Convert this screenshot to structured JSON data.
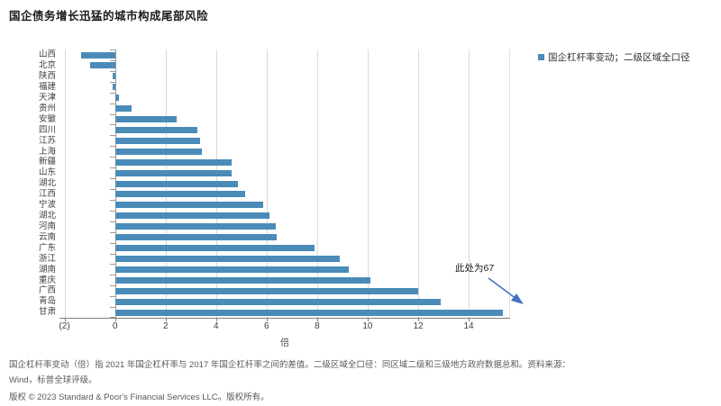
{
  "title": "国企债务增长迅猛的城市构成尾部风险",
  "legend": {
    "label": "国企杠杆率变动；二级区域全口径",
    "marker_color": "#4A8BB8"
  },
  "chart_data": {
    "type": "bar",
    "orientation": "horizontal",
    "title": "国企债务增长迅猛的城市构成尾部风险",
    "categories": [
      "山西",
      "北京",
      "陕西",
      "福建",
      "天津",
      "贵州",
      "安徽",
      "四川",
      "江苏",
      "上海",
      "新疆",
      "山东",
      "湖北",
      "江西",
      "宁波",
      "湖北",
      "河南",
      "云南",
      "广东",
      "浙江",
      "湖南",
      "重庆",
      "广西",
      "青岛",
      "甘肃"
    ],
    "values": [
      -1.35,
      -1.0,
      -0.1,
      -0.1,
      0.15,
      0.65,
      2.45,
      3.25,
      3.35,
      3.45,
      4.6,
      4.6,
      4.85,
      5.15,
      5.85,
      6.1,
      6.35,
      6.4,
      7.9,
      8.9,
      9.25,
      10.1,
      12.0,
      12.9,
      15.35
    ],
    "series_name": "国企杠杆率变动；二级区域全口径",
    "xlabel": "倍",
    "ylabel": "",
    "x_ticks": [
      "(2)",
      "0",
      "2",
      "4",
      "6",
      "8",
      "10",
      "12",
      "14"
    ],
    "x_tick_values": [
      -2,
      0,
      2,
      4,
      6,
      8,
      10,
      12,
      14
    ],
    "xlim": [
      -2.2,
      15.64
    ],
    "grid": "vertical",
    "legend_position": "top-right",
    "bar_color": "#4A8BB8",
    "annotation": {
      "text": "此处为67",
      "target_category": "甘肃",
      "actual_value": 67,
      "displayed_truncated_at": 15.35,
      "arrow_color": "#4472C4"
    }
  },
  "annotation": {
    "text": "此处为67"
  },
  "x_axis": {
    "label": "倍"
  },
  "footnotes": {
    "line1": "国企杠杆率变动（倍）指 2021 年国企杠杆率与 2017 年国企杠杆率之间的差值。二级区域全口径：同区域二级和三级地方政府数据总和。资料来源：",
    "line2": "Wind，标普全球评级。",
    "copyright": "版权 © 2023 Standard & Poor's Financial Services LLC。版权所有。"
  }
}
